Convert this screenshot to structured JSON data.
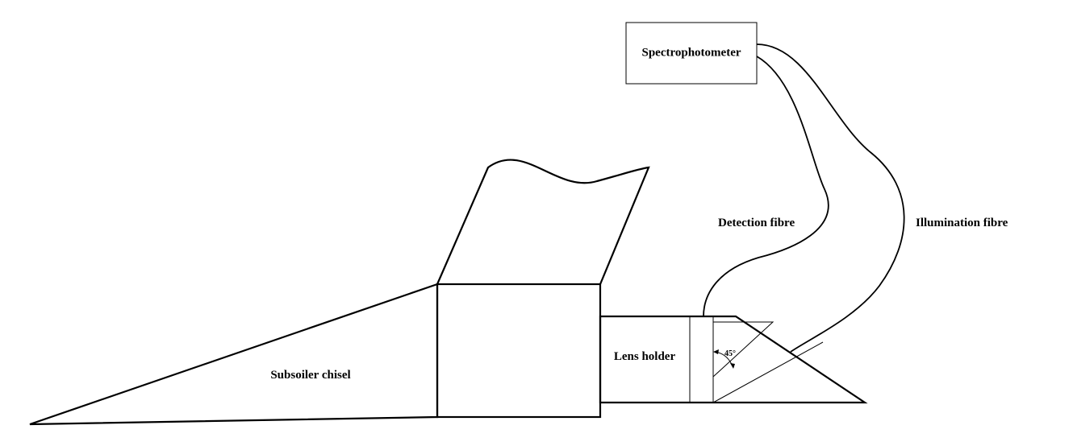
{
  "labels": {
    "spectrophotometer": "Spectrophotometer",
    "detection_fibre": "Detection fibre",
    "illumination_fibre": "Illumination fibre",
    "lens_holder": "Lens holder",
    "subsoiler_chisel": "Subsoiler chisel",
    "angle": "45°"
  }
}
